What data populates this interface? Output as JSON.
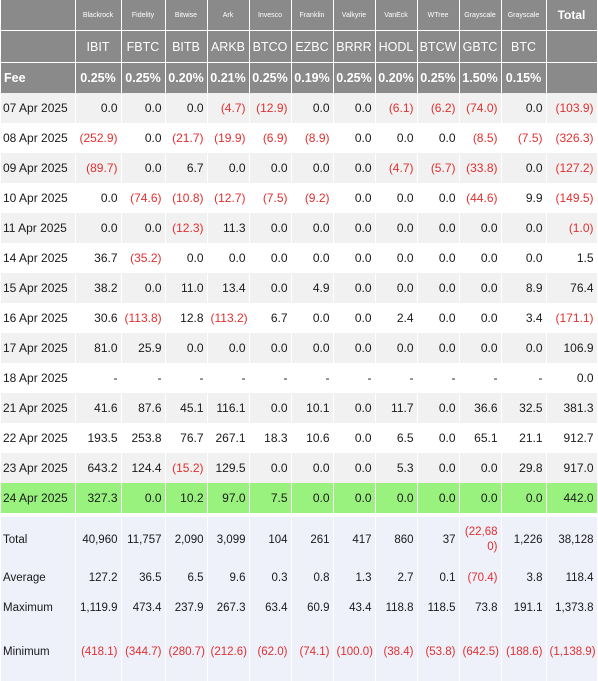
{
  "header": {
    "issuers": [
      "Blackrock",
      "Fidelity",
      "Bitwise",
      "Ark",
      "Invesco",
      "Franklin",
      "Valkyrie",
      "VanEck",
      "WTree",
      "Grayscale",
      "Grayscale"
    ],
    "total_label": "Total",
    "tickers": [
      "IBIT",
      "FBTC",
      "BITB",
      "ARKB",
      "BTCO",
      "EZBC",
      "BRRR",
      "HODL",
      "BTCW",
      "GBTC",
      "BTC"
    ],
    "fee_label": "Fee",
    "fees": [
      "0.25%",
      "0.25%",
      "0.20%",
      "0.21%",
      "0.25%",
      "0.19%",
      "0.25%",
      "0.20%",
      "0.25%",
      "1.50%",
      "0.15%"
    ]
  },
  "rows": [
    {
      "date": "07 Apr 2025",
      "values": [
        "0.0",
        "0.0",
        "0.0",
        "(4.7)",
        "(12.9)",
        "0.0",
        "0.0",
        "(6.1)",
        "(6.2)",
        "(74.0)",
        "0.0"
      ],
      "total": "(103.9)"
    },
    {
      "date": "08 Apr 2025",
      "values": [
        "(252.9)",
        "0.0",
        "(21.7)",
        "(19.9)",
        "(6.9)",
        "(8.9)",
        "0.0",
        "0.0",
        "0.0",
        "(8.5)",
        "(7.5)"
      ],
      "total": "(326.3)"
    },
    {
      "date": "09 Apr 2025",
      "values": [
        "(89.7)",
        "0.0",
        "6.7",
        "0.0",
        "0.0",
        "0.0",
        "0.0",
        "(4.7)",
        "(5.7)",
        "(33.8)",
        "0.0"
      ],
      "total": "(127.2)"
    },
    {
      "date": "10 Apr 2025",
      "values": [
        "0.0",
        "(74.6)",
        "(10.8)",
        "(12.7)",
        "(7.5)",
        "(9.2)",
        "0.0",
        "0.0",
        "0.0",
        "(44.6)",
        "9.9"
      ],
      "total": "(149.5)"
    },
    {
      "date": "11 Apr 2025",
      "values": [
        "0.0",
        "0.0",
        "(12.3)",
        "11.3",
        "0.0",
        "0.0",
        "0.0",
        "0.0",
        "0.0",
        "0.0",
        "0.0"
      ],
      "total": "(1.0)"
    },
    {
      "date": "14 Apr 2025",
      "values": [
        "36.7",
        "(35.2)",
        "0.0",
        "0.0",
        "0.0",
        "0.0",
        "0.0",
        "0.0",
        "0.0",
        "0.0",
        "0.0"
      ],
      "total": "1.5"
    },
    {
      "date": "15 Apr 2025",
      "values": [
        "38.2",
        "0.0",
        "11.0",
        "13.4",
        "0.0",
        "4.9",
        "0.0",
        "0.0",
        "0.0",
        "0.0",
        "8.9"
      ],
      "total": "76.4"
    },
    {
      "date": "16 Apr 2025",
      "values": [
        "30.6",
        "(113.8)",
        "12.8",
        "(113.2)",
        "6.7",
        "0.0",
        "0.0",
        "2.4",
        "0.0",
        "0.0",
        "3.4"
      ],
      "total": "(171.1)"
    },
    {
      "date": "17 Apr 2025",
      "values": [
        "81.0",
        "25.9",
        "0.0",
        "0.0",
        "0.0",
        "0.0",
        "0.0",
        "0.0",
        "0.0",
        "0.0",
        "0.0"
      ],
      "total": "106.9"
    },
    {
      "date": "18 Apr 2025",
      "values": [
        "-",
        "-",
        "-",
        "-",
        "-",
        "-",
        "-",
        "-",
        "-",
        "-",
        "-"
      ],
      "total": "0.0"
    },
    {
      "date": "21 Apr 2025",
      "values": [
        "41.6",
        "87.6",
        "45.1",
        "116.1",
        "0.0",
        "10.1",
        "0.0",
        "11.7",
        "0.0",
        "36.6",
        "32.5"
      ],
      "total": "381.3"
    },
    {
      "date": "22 Apr 2025",
      "values": [
        "193.5",
        "253.8",
        "76.7",
        "267.1",
        "18.3",
        "10.6",
        "0.0",
        "6.5",
        "0.0",
        "65.1",
        "21.1"
      ],
      "total": "912.7"
    },
    {
      "date": "23 Apr 2025",
      "values": [
        "643.2",
        "124.4",
        "(15.2)",
        "129.5",
        "0.0",
        "0.0",
        "0.0",
        "5.3",
        "0.0",
        "0.0",
        "29.8"
      ],
      "total": "917.0"
    },
    {
      "date": "24 Apr 2025",
      "values": [
        "327.3",
        "0.0",
        "10.2",
        "97.0",
        "7.5",
        "0.0",
        "0.0",
        "0.0",
        "0.0",
        "0.0",
        "0.0"
      ],
      "total": "442.0",
      "highlight": true
    }
  ],
  "stats": [
    {
      "label": "Total",
      "values": [
        "40,960",
        "11,757",
        "2,090",
        "3,099",
        "104",
        "261",
        "417",
        "860",
        "37",
        "(22,680)",
        "1,226"
      ],
      "total": "38,128"
    },
    {
      "label": "Average",
      "values": [
        "127.2",
        "36.5",
        "6.5",
        "9.6",
        "0.3",
        "0.8",
        "1.3",
        "2.7",
        "0.1",
        "(70.4)",
        "3.8"
      ],
      "total": "118.4"
    },
    {
      "label": "Maximum",
      "values": [
        "1,119.9",
        "473.4",
        "237.9",
        "267.3",
        "63.4",
        "60.9",
        "43.4",
        "118.8",
        "118.5",
        "73.8",
        "191.1"
      ],
      "total": "1,373.8"
    },
    {
      "label": "Minimum",
      "values": [
        "(418.1)",
        "(344.7)",
        "(280.7)",
        "(212.6)",
        "(62.0)",
        "(74.1)",
        "(100.0)",
        "(38.4)",
        "(53.8)",
        "(642.5)",
        "(188.6)"
      ],
      "total": "(1,138.9)"
    }
  ],
  "colors": {
    "header_bg": "#8a8a8a",
    "negative": "#e03030",
    "highlight": "#9af27e",
    "stats_bg": "#eef0fa"
  }
}
